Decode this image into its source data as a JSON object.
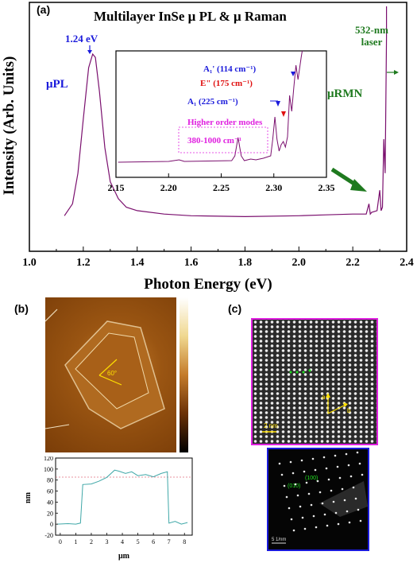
{
  "panel_a": {
    "label": "(a)",
    "title": "Multilayer InSe    μ PL & μ Raman",
    "ylabel": "Intensity (Arb. Units)",
    "xlabel": "Photon Energy (eV)",
    "xticks": [
      "1.0",
      "1.2",
      "1.4",
      "1.6",
      "1.8",
      "2.0",
      "2.2",
      "2.4"
    ],
    "peak_label": "1.24 eV",
    "pl_label": "μPL",
    "rmn_label": "μRMN",
    "laser_label_1": "532-nm",
    "laser_label_2": "laser",
    "colors": {
      "curve": "#7a0f6e",
      "pl": "#1a1adb",
      "rmn": "#1f7a1f",
      "peak": "#1a1adb",
      "e_mode": "#e01010",
      "ho": "#e020e0"
    },
    "inset": {
      "xticks": [
        "2.15",
        "2.20",
        "2.25",
        "2.30",
        "2.35"
      ],
      "a1p_label": "A₁' (114 cm⁻¹)",
      "e_label": "E\" (175 cm⁻¹)",
      "a1_label": "A₁ (225 cm⁻¹)",
      "ho_title": "Higher order modes",
      "ho_range": "380-1000 cm⁻¹"
    }
  },
  "panel_b": {
    "label": "(b)",
    "angle_label": "60°",
    "profile": {
      "ylabel": "nm",
      "xlabel": "μm",
      "yticks": [
        "-20",
        "0",
        "20",
        "40",
        "60",
        "80",
        "100",
        "120"
      ],
      "xticks": [
        "0",
        "1",
        "2",
        "3",
        "4",
        "5",
        "6",
        "7",
        "8"
      ]
    }
  },
  "panel_c": {
    "label": "(c)",
    "scale_hrtem": "2 nm",
    "axis_a": "a",
    "axis_b": "b",
    "spot_010": "(010)",
    "spot_100": "(100)",
    "scale_saed": "5 1/nm"
  },
  "chart_data": {
    "type": "line",
    "xlabel": "Photon Energy (eV)",
    "ylabel": "Intensity (Arb. Units)",
    "xlim": [
      1.0,
      2.4
    ],
    "series": [
      {
        "x": [
          1.13,
          1.16,
          1.18,
          1.2,
          1.22,
          1.235,
          1.245,
          1.26,
          1.28,
          1.3,
          1.33,
          1.36,
          1.4,
          1.5,
          1.6,
          1.8,
          2.0,
          2.1,
          2.2,
          2.25,
          2.26,
          2.265,
          2.27,
          2.29,
          2.3,
          2.305,
          2.31,
          2.315,
          2.32,
          2.325
        ],
        "values": [
          0.05,
          0.12,
          0.3,
          0.62,
          0.92,
          1.0,
          0.98,
          0.78,
          0.45,
          0.25,
          0.15,
          0.1,
          0.08,
          0.06,
          0.05,
          0.045,
          0.05,
          0.055,
          0.06,
          0.06,
          0.12,
          0.06,
          0.07,
          0.08,
          0.2,
          0.08,
          0.1,
          0.5,
          0.3,
          1.1
        ]
      }
    ],
    "annotations": [
      "1.24 eV"
    ]
  }
}
